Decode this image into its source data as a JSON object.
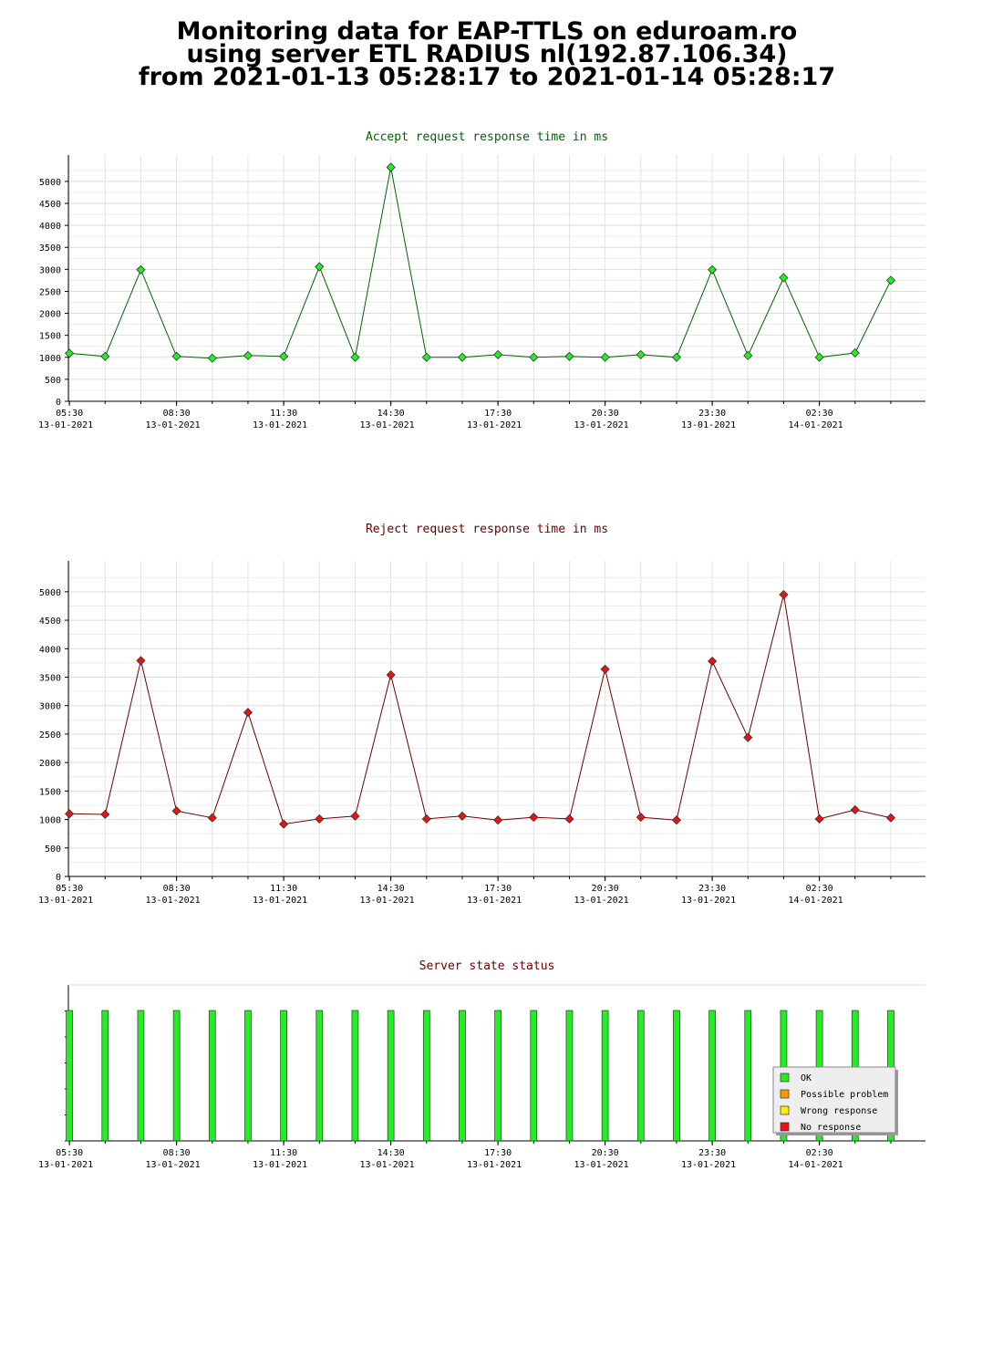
{
  "header": {
    "line1": "Monitoring data for EAP-TTLS on eduroam.ro",
    "line2": "using server ETL RADIUS nl(192.87.106.34)",
    "line3": "from 2021-01-13 05:28:17 to 2021-01-14 05:28:17"
  },
  "colors": {
    "accept": "#006400",
    "accept_marker": "#22ee22",
    "reject": "#6b0000",
    "reject_marker": "#ee1111",
    "status_title": "#6b0000",
    "ok": "#22ee22",
    "possible_problem": "#ff9900",
    "wrong_response": "#ffee00",
    "no_response": "#ee1111"
  },
  "x_axis": {
    "ticks": [
      {
        "time": "05:30",
        "date": "13-01-2021"
      },
      {
        "time": "08:30",
        "date": "13-01-2021"
      },
      {
        "time": "11:30",
        "date": "13-01-2021"
      },
      {
        "time": "14:30",
        "date": "13-01-2021"
      },
      {
        "time": "17:30",
        "date": "13-01-2021"
      },
      {
        "time": "20:30",
        "date": "13-01-2021"
      },
      {
        "time": "23:30",
        "date": "13-01-2021"
      },
      {
        "time": "02:30",
        "date": "14-01-2021"
      }
    ]
  },
  "chart_data": [
    {
      "type": "line",
      "title": "Accept request response time in ms",
      "ylim": [
        0,
        5350
      ],
      "yticks": [
        0,
        500,
        1000,
        1500,
        2000,
        2500,
        3000,
        3500,
        4000,
        4500,
        5000
      ],
      "grid": true,
      "x": [
        "05:28",
        "06:28",
        "07:28",
        "08:28",
        "09:28",
        "10:28",
        "11:28",
        "12:28",
        "13:28",
        "14:28",
        "15:28",
        "16:28",
        "17:28",
        "18:28",
        "19:28",
        "20:28",
        "21:28",
        "22:28",
        "23:28",
        "00:28",
        "01:28",
        "02:28",
        "03:28",
        "04:28"
      ],
      "series": [
        {
          "values": [
            1090,
            1020,
            2990,
            1020,
            980,
            1040,
            1020,
            3060,
            1000,
            5320,
            1000,
            1000,
            1060,
            1000,
            1020,
            1000,
            1060,
            1000,
            2990,
            1040,
            2810,
            1000,
            1100,
            2750
          ]
        }
      ]
    },
    {
      "type": "line",
      "title": "Reject request response time in ms",
      "ylim": [
        0,
        5350
      ],
      "yticks": [
        0,
        500,
        1000,
        1500,
        2000,
        2500,
        3000,
        3500,
        4000,
        4500,
        5000
      ],
      "grid": true,
      "x": [
        "05:28",
        "06:28",
        "07:28",
        "08:28",
        "09:28",
        "10:28",
        "11:28",
        "12:28",
        "13:28",
        "14:28",
        "15:28",
        "16:28",
        "17:28",
        "18:28",
        "19:28",
        "20:28",
        "21:28",
        "22:28",
        "23:28",
        "00:28",
        "01:28",
        "02:28",
        "03:28",
        "04:28"
      ],
      "series": [
        {
          "values": [
            1100,
            1090,
            3790,
            1150,
            1030,
            2880,
            920,
            1010,
            1060,
            3540,
            1010,
            1060,
            990,
            1040,
            1010,
            3640,
            1040,
            990,
            3780,
            2440,
            4950,
            1010,
            1170,
            1030
          ]
        }
      ]
    },
    {
      "type": "bar",
      "title": "Server state status",
      "x": [
        "05:28",
        "06:28",
        "07:28",
        "08:28",
        "09:28",
        "10:28",
        "11:28",
        "12:28",
        "13:28",
        "14:28",
        "15:28",
        "16:28",
        "17:28",
        "18:28",
        "19:28",
        "20:28",
        "21:28",
        "22:28",
        "23:28",
        "00:28",
        "01:28",
        "02:28",
        "03:28",
        "04:28"
      ],
      "status": [
        "OK",
        "OK",
        "OK",
        "OK",
        "OK",
        "OK",
        "OK",
        "OK",
        "OK",
        "OK",
        "OK",
        "OK",
        "OK",
        "OK",
        "OK",
        "OK",
        "OK",
        "OK",
        "OK",
        "OK",
        "OK",
        "OK",
        "OK",
        "OK"
      ],
      "legend": {
        "placement": "bottom-right",
        "items": [
          "OK",
          "Possible problem",
          "Wrong response",
          "No response"
        ]
      }
    }
  ]
}
